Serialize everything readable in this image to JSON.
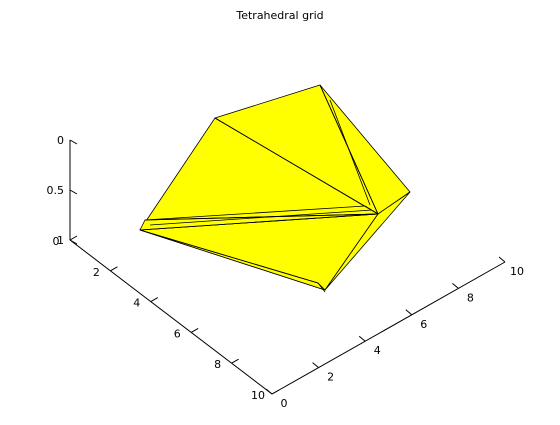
{
  "chart_data": {
    "type": "tetramesh-3d",
    "title": "Tetrahedral grid",
    "face_color": "#ffff00",
    "edge_color": "#000000",
    "axes": {
      "x": {
        "label": "",
        "range": [
          0,
          10
        ],
        "ticks": [
          "0",
          "2",
          "4",
          "6",
          "8",
          "10"
        ]
      },
      "y": {
        "label": "",
        "range": [
          0,
          10
        ],
        "ticks": [
          "0",
          "2",
          "4",
          "6",
          "8",
          "10"
        ]
      },
      "z": {
        "label": "",
        "range": [
          0,
          1
        ],
        "ticks": [
          "0",
          "0.5",
          "1"
        ],
        "direction": "reversed"
      }
    },
    "grid": false,
    "legend": "none"
  }
}
